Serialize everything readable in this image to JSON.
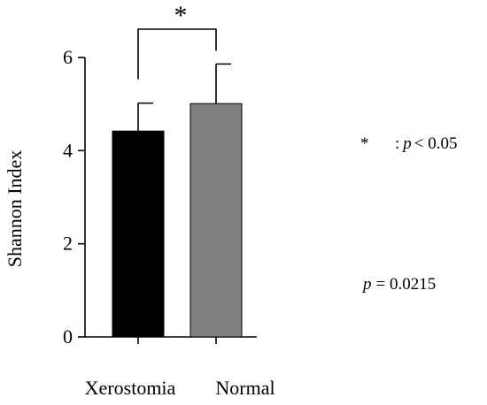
{
  "chart_data": {
    "type": "bar",
    "title": "",
    "xlabel": "",
    "ylabel": "Shannon Index",
    "ylim": [
      0,
      6
    ],
    "yticks": [
      0,
      2,
      4,
      6
    ],
    "grid": false,
    "categories": [
      "Xerostomia",
      "Normal"
    ],
    "values": [
      4.42,
      5.01
    ],
    "errors": [
      0.6,
      0.85
    ],
    "colors": [
      "#000000",
      "#808080"
    ],
    "significance": {
      "marker": "*",
      "between": [
        "Xerostomia",
        "Normal"
      ]
    },
    "annotations": {
      "legend_star": "*",
      "legend_p": "p",
      "legend_rest": "< 0.05",
      "legend_colon": ":",
      "pvalue_p": "p",
      "pvalue_rest": "= 0.0215"
    }
  }
}
